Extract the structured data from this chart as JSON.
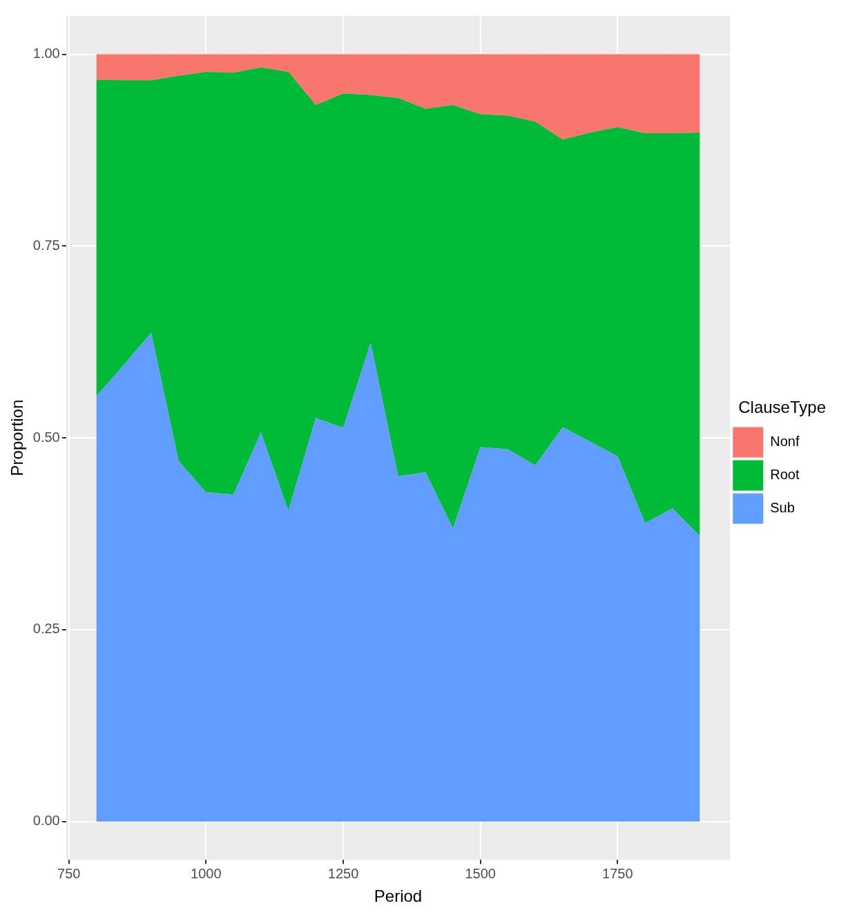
{
  "chart_data": {
    "type": "area",
    "stacked": true,
    "xlabel": "Period",
    "ylabel": "Proportion",
    "legend_title": "ClauseType",
    "legend": "right",
    "grid": true,
    "x": [
      800,
      850,
      900,
      950,
      1000,
      1050,
      1100,
      1150,
      1200,
      1250,
      1300,
      1350,
      1400,
      1450,
      1500,
      1550,
      1600,
      1650,
      1700,
      1750,
      1800,
      1850,
      1900
    ],
    "xlim": [
      745,
      1955
    ],
    "xticks": [
      750,
      1000,
      1250,
      1500,
      1750
    ],
    "ylim": [
      -0.05,
      1.05
    ],
    "yticks": [
      {
        "value": 0,
        "label": "0.00"
      },
      {
        "value": 0.25,
        "label": "0.25"
      },
      {
        "value": 0.5,
        "label": "0.50"
      },
      {
        "value": 0.75,
        "label": "0.75"
      },
      {
        "value": 1,
        "label": "1.00"
      }
    ],
    "series": [
      {
        "name": "Sub",
        "color": "#619cff",
        "values": [
          0.554,
          0.595,
          0.637,
          0.47,
          0.429,
          0.426,
          0.507,
          0.405,
          0.526,
          0.513,
          0.624,
          0.45,
          0.455,
          0.382,
          0.488,
          0.485,
          0.464,
          0.514,
          0.495,
          0.476,
          0.389,
          0.408,
          0.372
        ]
      },
      {
        "name": "Root",
        "color": "#00ba38",
        "values": [
          0.413,
          0.371,
          0.329,
          0.502,
          0.548,
          0.55,
          0.476,
          0.572,
          0.408,
          0.436,
          0.323,
          0.493,
          0.474,
          0.552,
          0.434,
          0.435,
          0.448,
          0.375,
          0.403,
          0.429,
          0.508,
          0.489,
          0.526
        ]
      },
      {
        "name": "Nonf",
        "color": "#f8766d",
        "values": [
          0.033,
          0.034,
          0.034,
          0.028,
          0.023,
          0.024,
          0.017,
          0.023,
          0.066,
          0.051,
          0.053,
          0.057,
          0.071,
          0.066,
          0.078,
          0.08,
          0.088,
          0.111,
          0.102,
          0.095,
          0.103,
          0.103,
          0.102
        ]
      }
    ]
  }
}
